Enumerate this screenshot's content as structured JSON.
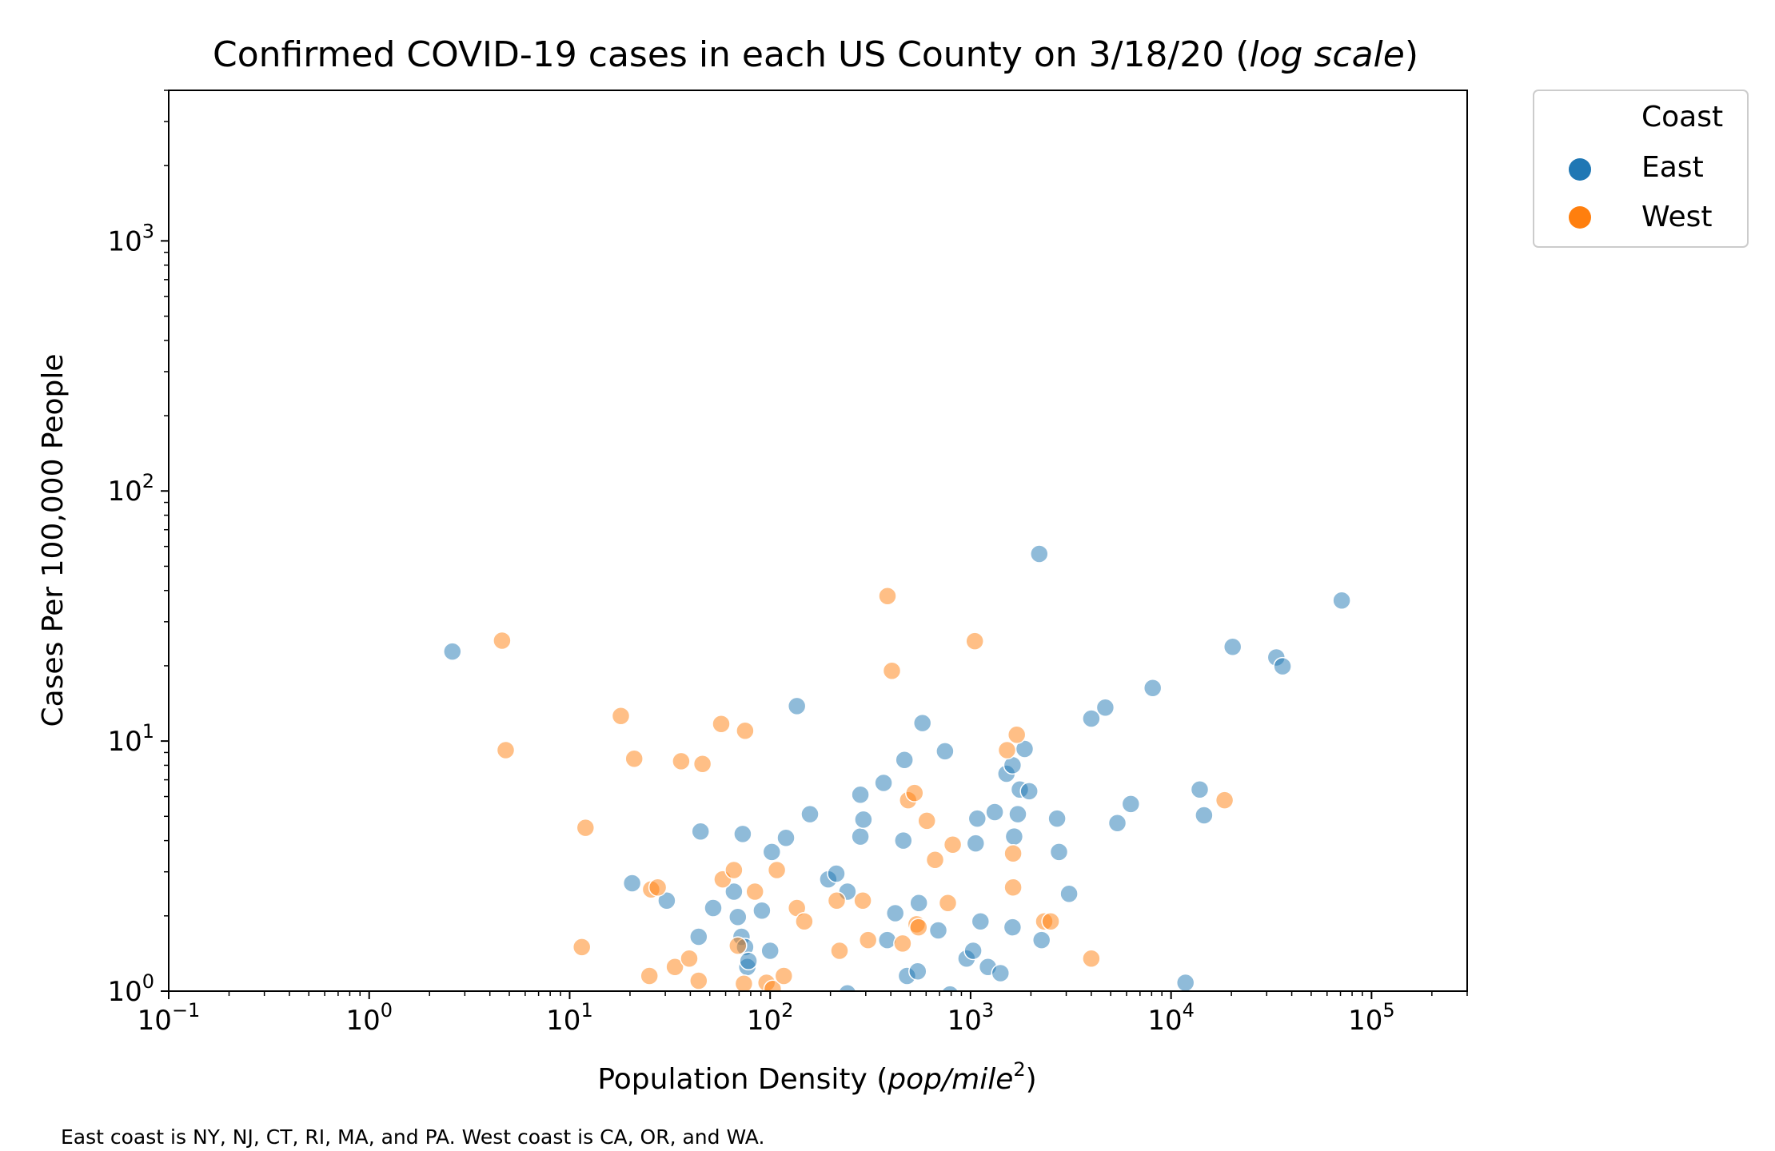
{
  "chart_data": {
    "type": "scatter",
    "title": {
      "main": "Confirmed COVID-19 cases in each US County on 3/18/20 (",
      "emph": "log scale",
      "close": ")"
    },
    "xlabel": {
      "main": "Population Density (",
      "emph": "pop/mile",
      "sup": "2",
      "close": ")"
    },
    "ylabel": "Cases Per 100,000 People",
    "xscale": "log",
    "yscale": "log",
    "xlim": [
      0.1,
      300000
    ],
    "ylim": [
      1,
      4000
    ],
    "x_ticks": [
      {
        "value": 0.1,
        "base": "10",
        "exp": "−1"
      },
      {
        "value": 1,
        "base": "10",
        "exp": "0"
      },
      {
        "value": 10,
        "base": "10",
        "exp": "1"
      },
      {
        "value": 100,
        "base": "10",
        "exp": "2"
      },
      {
        "value": 1000,
        "base": "10",
        "exp": "3"
      },
      {
        "value": 10000,
        "base": "10",
        "exp": "4"
      },
      {
        "value": 100000,
        "base": "10",
        "exp": "5"
      }
    ],
    "y_ticks": [
      {
        "value": 1,
        "base": "10",
        "exp": "0"
      },
      {
        "value": 10,
        "base": "10",
        "exp": "1"
      },
      {
        "value": 100,
        "base": "10",
        "exp": "2"
      },
      {
        "value": 1000,
        "base": "10",
        "exp": "3"
      }
    ],
    "grid": false,
    "legend": {
      "title": "Coast",
      "placement": "outside-top-right",
      "entries": [
        {
          "label": "East",
          "color": "#1f77b4"
        },
        {
          "label": "West",
          "color": "#ff7f0e"
        }
      ]
    },
    "point_alpha": 0.5,
    "series": [
      {
        "color": "#1f77b4",
        "points": [
          [
            2.6,
            22.8
          ],
          [
            20.5,
            2.7
          ],
          [
            30.5,
            2.3
          ],
          [
            44,
            1.65
          ],
          [
            45,
            4.35
          ],
          [
            52,
            2.15
          ],
          [
            66,
            2.5
          ],
          [
            69,
            1.98
          ],
          [
            72,
            1.65
          ],
          [
            73,
            4.25
          ],
          [
            75,
            1.5
          ],
          [
            77,
            1.25
          ],
          [
            78,
            1.32
          ],
          [
            91,
            2.1
          ],
          [
            100,
            1.45
          ],
          [
            102,
            3.6
          ],
          [
            120,
            4.1
          ],
          [
            136,
            13.8
          ],
          [
            158,
            5.1
          ],
          [
            195,
            2.8
          ],
          [
            214,
            2.95
          ],
          [
            243,
            2.5
          ],
          [
            243,
            0.98
          ],
          [
            282,
            4.15
          ],
          [
            282,
            6.1
          ],
          [
            292,
            4.85
          ],
          [
            368,
            6.8
          ],
          [
            384,
            1.6
          ],
          [
            421,
            2.05
          ],
          [
            462,
            4.0
          ],
          [
            468,
            8.4
          ],
          [
            482,
            1.15
          ],
          [
            545,
            1.2
          ],
          [
            552,
            2.25
          ],
          [
            575,
            11.8
          ],
          [
            690,
            1.75
          ],
          [
            745,
            9.1
          ],
          [
            790,
            0.97
          ],
          [
            955,
            1.35
          ],
          [
            1030,
            1.45
          ],
          [
            1060,
            3.9
          ],
          [
            1080,
            4.9
          ],
          [
            1120,
            1.9
          ],
          [
            1220,
            1.25
          ],
          [
            1320,
            5.2
          ],
          [
            1410,
            1.18
          ],
          [
            1510,
            7.4
          ],
          [
            1620,
            1.8
          ],
          [
            1620,
            8.0
          ],
          [
            1650,
            4.15
          ],
          [
            1720,
            5.1
          ],
          [
            1760,
            6.4
          ],
          [
            1860,
            9.3
          ],
          [
            1960,
            6.3
          ],
          [
            2200,
            56.0
          ],
          [
            2260,
            1.6
          ],
          [
            2700,
            4.9
          ],
          [
            2760,
            3.6
          ],
          [
            3100,
            2.45
          ],
          [
            4000,
            12.3
          ],
          [
            4700,
            13.6
          ],
          [
            5400,
            4.7
          ],
          [
            6300,
            5.6
          ],
          [
            8100,
            16.3
          ],
          [
            11800,
            1.08
          ],
          [
            13900,
            6.4
          ],
          [
            14600,
            5.05
          ],
          [
            20300,
            23.8
          ],
          [
            33500,
            21.6
          ],
          [
            36000,
            19.9
          ],
          [
            71000,
            36.5
          ]
        ]
      },
      {
        "color": "#ff7f0e",
        "points": [
          [
            4.6,
            25.2
          ],
          [
            4.8,
            9.2
          ],
          [
            11.5,
            1.5
          ],
          [
            12.0,
            4.5
          ],
          [
            18.0,
            12.6
          ],
          [
            21.0,
            8.5
          ],
          [
            25,
            1.15
          ],
          [
            25.5,
            2.55
          ],
          [
            27.5,
            2.6
          ],
          [
            33.5,
            1.25
          ],
          [
            36,
            8.3
          ],
          [
            39.5,
            1.35
          ],
          [
            44,
            1.1
          ],
          [
            46,
            8.1
          ],
          [
            57,
            11.7
          ],
          [
            58,
            2.8
          ],
          [
            66,
            3.05
          ],
          [
            69,
            1.52
          ],
          [
            74,
            1.07
          ],
          [
            75,
            11.0
          ],
          [
            84,
            2.5
          ],
          [
            96,
            1.08
          ],
          [
            103,
            1.02
          ],
          [
            108,
            3.05
          ],
          [
            117,
            1.15
          ],
          [
            136,
            2.15
          ],
          [
            148,
            1.9
          ],
          [
            215,
            2.3
          ],
          [
            222,
            1.45
          ],
          [
            290,
            2.3
          ],
          [
            308,
            1.6
          ],
          [
            385,
            38.0
          ],
          [
            405,
            19.1
          ],
          [
            458,
            1.55
          ],
          [
            488,
            5.8
          ],
          [
            525,
            6.2
          ],
          [
            538,
            1.85
          ],
          [
            550,
            1.8
          ],
          [
            605,
            4.8
          ],
          [
            665,
            3.35
          ],
          [
            770,
            2.25
          ],
          [
            815,
            3.85
          ],
          [
            1050,
            25.1
          ],
          [
            1520,
            9.2
          ],
          [
            1630,
            3.55
          ],
          [
            1630,
            2.6
          ],
          [
            1700,
            10.6
          ],
          [
            2330,
            1.9
          ],
          [
            2510,
            1.9
          ],
          [
            4000,
            1.35
          ],
          [
            18500,
            5.8
          ]
        ]
      }
    ]
  },
  "footnote": "East coast is NY, NJ, CT, RI, MA, and PA. West coast is CA, OR, and WA."
}
